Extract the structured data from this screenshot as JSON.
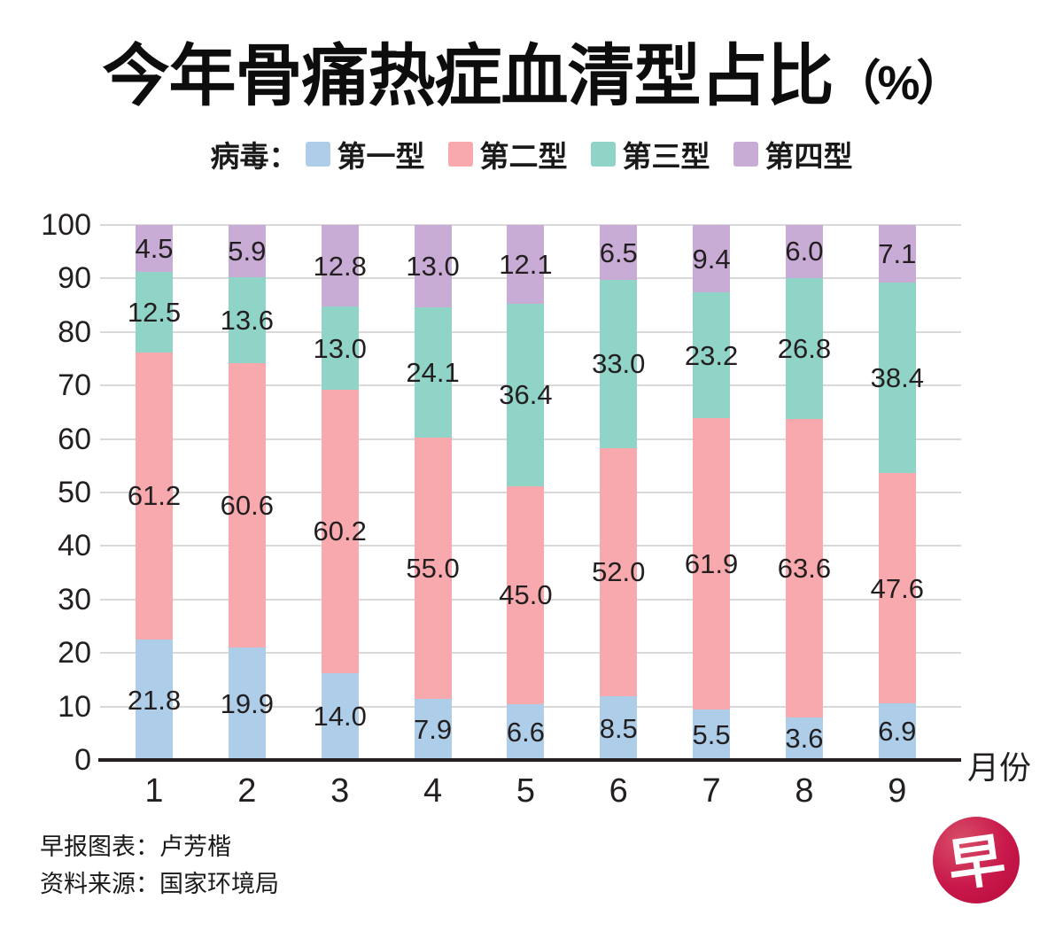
{
  "title": {
    "main": "今年骨痛热症血清型占比",
    "unit": "（%）"
  },
  "legend": {
    "prefix": "病毒：",
    "items": [
      {
        "label": "第一型",
        "color": "#adcde8"
      },
      {
        "label": "第二型",
        "color": "#f8a9ad"
      },
      {
        "label": "第三型",
        "color": "#90d3c7"
      },
      {
        "label": "第四型",
        "color": "#c9acd6"
      }
    ]
  },
  "chart_data": {
    "type": "bar",
    "stacked": true,
    "title": "今年骨痛热症血清型占比（%）",
    "xlabel": "月份",
    "ylabel": "",
    "ylim": [
      0,
      100
    ],
    "yticks": [
      0,
      10,
      20,
      30,
      40,
      50,
      60,
      70,
      80,
      90,
      100
    ],
    "grid": true,
    "legend_position": "top",
    "categories": [
      "1",
      "2",
      "3",
      "4",
      "5",
      "6",
      "7",
      "8",
      "9"
    ],
    "series": [
      {
        "name": "第一型",
        "color": "#adcde8",
        "values": [
          21.8,
          19.9,
          14.0,
          7.9,
          6.6,
          8.5,
          5.5,
          3.6,
          6.9
        ],
        "labels": [
          "21.8",
          "19.9",
          "14.0",
          "7.9",
          "6.6",
          "8.5",
          "5.5",
          "3.6",
          "6.9"
        ]
      },
      {
        "name": "第二型",
        "color": "#f8a9ad",
        "values": [
          61.2,
          60.6,
          60.2,
          55.0,
          45.0,
          52.0,
          61.9,
          63.6,
          47.6
        ],
        "labels": [
          "61.2",
          "60.6",
          "60.2",
          "55.0",
          "45.0",
          "52.0",
          "61.9",
          "63.6",
          "47.6"
        ]
      },
      {
        "name": "第三型",
        "color": "#90d3c7",
        "values": [
          12.5,
          13.6,
          13.0,
          24.1,
          36.4,
          33.0,
          23.2,
          26.8,
          38.4
        ],
        "labels": [
          "12.5",
          "13.6",
          "13.0",
          "24.1",
          "36.4",
          "33.0",
          "23.2",
          "26.8",
          "38.4"
        ]
      },
      {
        "name": "第四型",
        "color": "#c9acd6",
        "values": [
          4.5,
          5.9,
          12.8,
          13.0,
          12.1,
          6.5,
          9.4,
          6.0,
          7.1
        ],
        "labels": [
          "4.5",
          "5.9",
          "12.8",
          "13.0",
          "12.1",
          "6.5",
          "9.4",
          "6.0",
          "7.1"
        ]
      }
    ]
  },
  "footer": {
    "credit": "早报图表：卢芳楷",
    "source": "资料来源：国家环境局",
    "logo_glyph": "早"
  },
  "colors": {
    "text": "#231f20",
    "grid": "#d9d9d9",
    "axis": "#231f20",
    "logo_red": "#c8174a",
    "background": "#ffffff"
  }
}
